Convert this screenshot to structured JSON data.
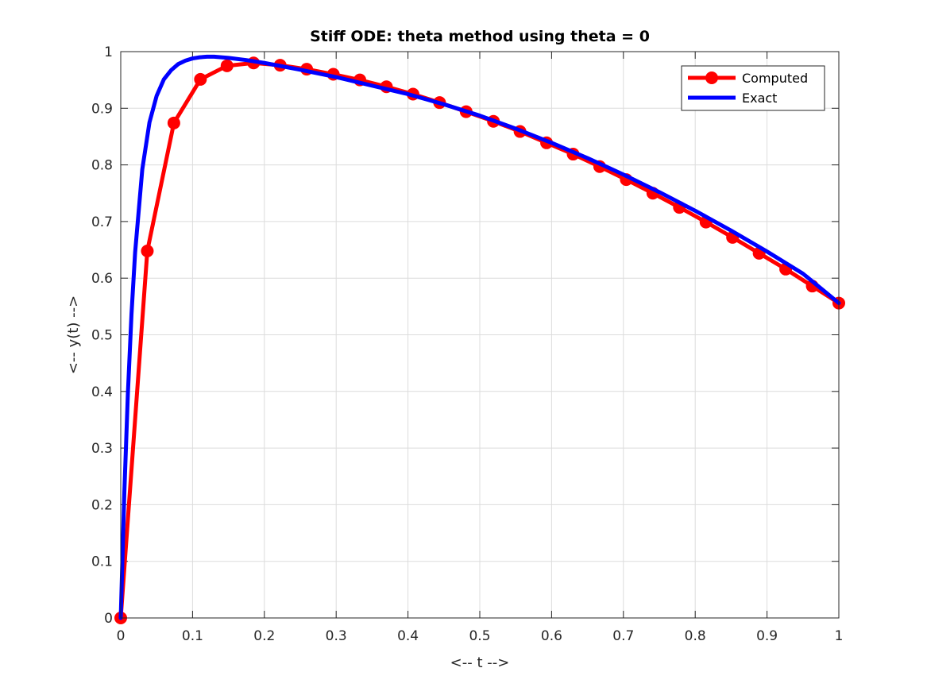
{
  "chart_data": {
    "type": "line",
    "title": "Stiff ODE: theta method using theta = 0",
    "xlabel": "<-- t -->",
    "ylabel": "<-- y(t) -->",
    "xlim": [
      0,
      1
    ],
    "ylim": [
      0,
      1
    ],
    "xticks": [
      "0",
      "0.1",
      "0.2",
      "0.3",
      "0.4",
      "0.5",
      "0.6",
      "0.7",
      "0.8",
      "0.9",
      "1"
    ],
    "yticks": [
      "0",
      "0.1",
      "0.2",
      "0.3",
      "0.4",
      "0.5",
      "0.6",
      "0.7",
      "0.8",
      "0.9",
      "1"
    ],
    "grid": true,
    "legend_position": "top-right",
    "series": [
      {
        "name": "Computed",
        "color": "#ff0000",
        "marker": "circle",
        "x": [
          0,
          0.037,
          0.074,
          0.111,
          0.148,
          0.185,
          0.222,
          0.259,
          0.296,
          0.333,
          0.37,
          0.407,
          0.444,
          0.481,
          0.519,
          0.556,
          0.593,
          0.63,
          0.667,
          0.704,
          0.741,
          0.778,
          0.815,
          0.852,
          0.889,
          0.926,
          0.963,
          1.0
        ],
        "y": [
          0,
          0.648,
          0.874,
          0.951,
          0.975,
          0.98,
          0.976,
          0.969,
          0.96,
          0.95,
          0.938,
          0.925,
          0.91,
          0.894,
          0.877,
          0.859,
          0.839,
          0.819,
          0.797,
          0.774,
          0.75,
          0.725,
          0.699,
          0.672,
          0.644,
          0.616,
          0.586,
          0.556
        ]
      },
      {
        "name": "Exact",
        "color": "#0000ff",
        "marker": "none",
        "x": [
          0,
          0.005,
          0.01,
          0.015,
          0.02,
          0.03,
          0.04,
          0.05,
          0.06,
          0.07,
          0.08,
          0.09,
          0.1,
          0.11,
          0.12,
          0.13,
          0.15,
          0.175,
          0.2,
          0.25,
          0.3,
          0.35,
          0.4,
          0.45,
          0.5,
          0.55,
          0.6,
          0.65,
          0.7,
          0.75,
          0.8,
          0.85,
          0.9,
          0.95,
          1.0
        ],
        "y": [
          0,
          0.221,
          0.398,
          0.537,
          0.645,
          0.792,
          0.875,
          0.922,
          0.951,
          0.967,
          0.978,
          0.984,
          0.988,
          0.99,
          0.991,
          0.991,
          0.989,
          0.985,
          0.98,
          0.968,
          0.955,
          0.94,
          0.925,
          0.907,
          0.887,
          0.864,
          0.839,
          0.812,
          0.783,
          0.752,
          0.719,
          0.684,
          0.647,
          0.608,
          0.556
        ]
      }
    ]
  }
}
